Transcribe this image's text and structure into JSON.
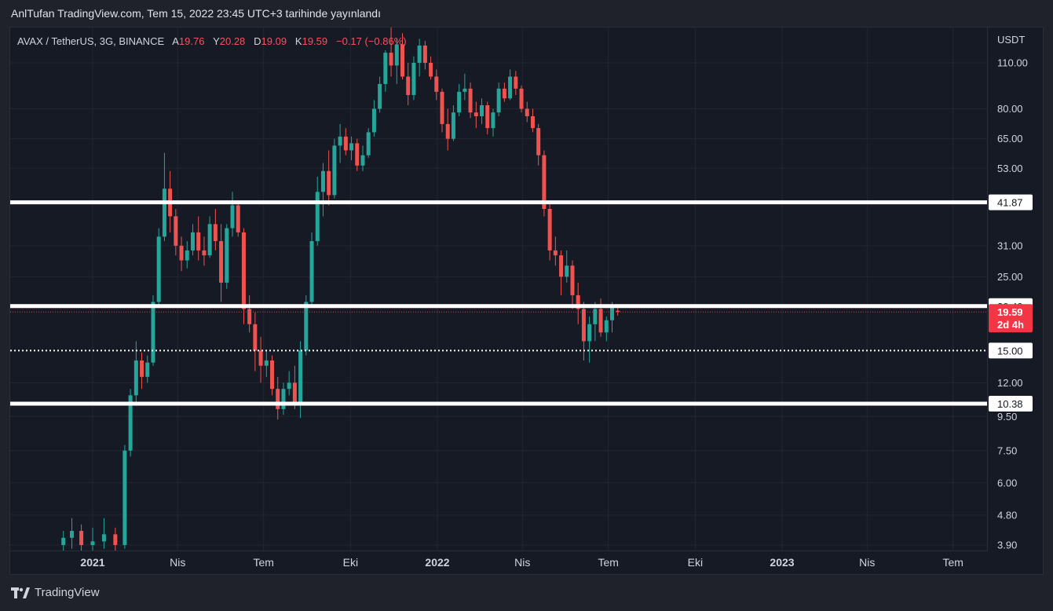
{
  "header": {
    "publish_line": "AnlTufan TradingView.com, Tem 15, 2022 23:45 UTC+3 tarihinde yayınlandı"
  },
  "legend": {
    "symbol": "AVAX / TetherUS, 3G, BINANCE",
    "open_label": "A",
    "open_value": "19.76",
    "high_label": "Y",
    "high_value": "20.28",
    "low_label": "D",
    "low_value": "19.09",
    "close_label": "K",
    "close_value": "19.59",
    "change": "−0.17 (−0.86%)"
  },
  "footer": {
    "brand": "TradingView",
    "logo_icon": "tradingview-logo-icon"
  },
  "colors": {
    "up": "#26a69a",
    "down": "#ef5350",
    "level_line": "#ffffff",
    "background": "#161a25",
    "grid": "#232632",
    "last_price": "#f23645"
  },
  "chart_data": {
    "type": "candlestick",
    "y_scale": "log",
    "ylabel": "USDT",
    "ylim": [
      3.75,
      162
    ],
    "y_ticks": [
      "110.00",
      "80.00",
      "65.00",
      "53.00",
      "31.00",
      "25.00",
      "12.00",
      "9.50",
      "7.50",
      "6.00",
      "4.80",
      "3.90"
    ],
    "x_ticks": [
      "2021",
      "Nis",
      "Tem",
      "Eki",
      "2022",
      "Nis",
      "Tem",
      "Eki",
      "2023",
      "Nis",
      "Tem"
    ],
    "horizontal_levels": [
      {
        "value": 41.87,
        "label": "41.87",
        "style": "solid"
      },
      {
        "value": 20.4,
        "label": "20.40",
        "style": "solid"
      },
      {
        "value": 15.0,
        "label": "15.00",
        "style": "dotted"
      },
      {
        "value": 10.38,
        "label": "10.38",
        "style": "solid"
      }
    ],
    "last_price": {
      "value": 19.59,
      "label": "19.59",
      "countdown": "2d 4h"
    },
    "candles": [
      {
        "date": "2020-12-01",
        "o": 3.9,
        "h": 4.3,
        "l": 3.5,
        "c": 4.1
      },
      {
        "date": "2020-12-10",
        "o": 4.1,
        "h": 4.7,
        "l": 3.8,
        "c": 4.3
      },
      {
        "date": "2020-12-20",
        "o": 4.3,
        "h": 4.5,
        "l": 3.7,
        "c": 3.9
      },
      {
        "date": "2021-01-01",
        "o": 3.9,
        "h": 4.4,
        "l": 3.6,
        "c": 4.0
      },
      {
        "date": "2021-01-13",
        "o": 4.0,
        "h": 4.7,
        "l": 3.8,
        "c": 4.2
      },
      {
        "date": "2021-01-25",
        "o": 4.2,
        "h": 4.4,
        "l": 3.6,
        "c": 3.9
      },
      {
        "date": "2021-02-04",
        "o": 3.9,
        "h": 7.8,
        "l": 3.8,
        "c": 7.5
      },
      {
        "date": "2021-02-10",
        "o": 7.5,
        "h": 11.5,
        "l": 7.2,
        "c": 11.0
      },
      {
        "date": "2021-02-16",
        "o": 11.0,
        "h": 16.0,
        "l": 10.5,
        "c": 14.0
      },
      {
        "date": "2021-02-22",
        "o": 14.0,
        "h": 14.8,
        "l": 11.5,
        "c": 12.5
      },
      {
        "date": "2021-02-28",
        "o": 12.5,
        "h": 14.5,
        "l": 12.0,
        "c": 13.8
      },
      {
        "date": "2021-03-06",
        "o": 13.8,
        "h": 22.0,
        "l": 13.5,
        "c": 21.0
      },
      {
        "date": "2021-03-12",
        "o": 21.0,
        "h": 35.0,
        "l": 20.5,
        "c": 33.0
      },
      {
        "date": "2021-03-18",
        "o": 33.0,
        "h": 59.0,
        "l": 32.0,
        "c": 46.0
      },
      {
        "date": "2021-03-24",
        "o": 46.0,
        "h": 52.0,
        "l": 34.0,
        "c": 38.0
      },
      {
        "date": "2021-03-30",
        "o": 38.0,
        "h": 40.0,
        "l": 29.0,
        "c": 31.0
      },
      {
        "date": "2021-04-05",
        "o": 31.0,
        "h": 33.0,
        "l": 26.0,
        "c": 28.0
      },
      {
        "date": "2021-04-11",
        "o": 28.0,
        "h": 32.0,
        "l": 26.5,
        "c": 30.0
      },
      {
        "date": "2021-04-17",
        "o": 30.0,
        "h": 36.0,
        "l": 29.0,
        "c": 34.0
      },
      {
        "date": "2021-04-23",
        "o": 34.0,
        "h": 38.0,
        "l": 28.0,
        "c": 30.0
      },
      {
        "date": "2021-04-29",
        "o": 30.0,
        "h": 33.0,
        "l": 27.0,
        "c": 29.0
      },
      {
        "date": "2021-05-05",
        "o": 29.0,
        "h": 38.0,
        "l": 28.5,
        "c": 36.0
      },
      {
        "date": "2021-05-11",
        "o": 36.0,
        "h": 40.0,
        "l": 30.0,
        "c": 32.0
      },
      {
        "date": "2021-05-17",
        "o": 32.0,
        "h": 36.0,
        "l": 21.0,
        "c": 24.0
      },
      {
        "date": "2021-05-23",
        "o": 24.0,
        "h": 36.0,
        "l": 23.0,
        "c": 35.0
      },
      {
        "date": "2021-05-29",
        "o": 35.0,
        "h": 45.0,
        "l": 33.0,
        "c": 41.0
      },
      {
        "date": "2021-06-04",
        "o": 41.0,
        "h": 42.0,
        "l": 33.0,
        "c": 34.0
      },
      {
        "date": "2021-06-10",
        "o": 34.0,
        "h": 35.0,
        "l": 18.0,
        "c": 20.0
      },
      {
        "date": "2021-06-16",
        "o": 20.0,
        "h": 22.0,
        "l": 17.0,
        "c": 18.0
      },
      {
        "date": "2021-06-22",
        "o": 18.0,
        "h": 19.5,
        "l": 13.0,
        "c": 15.0
      },
      {
        "date": "2021-06-28",
        "o": 15.0,
        "h": 16.5,
        "l": 12.0,
        "c": 13.5
      },
      {
        "date": "2021-07-04",
        "o": 13.5,
        "h": 15.0,
        "l": 12.5,
        "c": 14.0
      },
      {
        "date": "2021-07-10",
        "o": 14.0,
        "h": 14.5,
        "l": 11.0,
        "c": 11.5
      },
      {
        "date": "2021-07-16",
        "o": 11.5,
        "h": 12.5,
        "l": 9.3,
        "c": 10.0
      },
      {
        "date": "2021-07-22",
        "o": 10.0,
        "h": 12.0,
        "l": 9.6,
        "c": 11.5
      },
      {
        "date": "2021-07-28",
        "o": 11.5,
        "h": 13.0,
        "l": 11.0,
        "c": 12.0
      },
      {
        "date": "2021-08-03",
        "o": 12.0,
        "h": 13.5,
        "l": 10.0,
        "c": 10.5
      },
      {
        "date": "2021-08-09",
        "o": 10.5,
        "h": 16.0,
        "l": 9.4,
        "c": 15.0
      },
      {
        "date": "2021-08-15",
        "o": 15.0,
        "h": 22.0,
        "l": 14.5,
        "c": 21.0
      },
      {
        "date": "2021-08-21",
        "o": 21.0,
        "h": 34.0,
        "l": 20.5,
        "c": 32.0
      },
      {
        "date": "2021-08-27",
        "o": 32.0,
        "h": 50.0,
        "l": 31.0,
        "c": 45.0
      },
      {
        "date": "2021-09-02",
        "o": 45.0,
        "h": 55.0,
        "l": 38.0,
        "c": 52.0
      },
      {
        "date": "2021-09-08",
        "o": 52.0,
        "h": 60.0,
        "l": 41.0,
        "c": 44.0
      },
      {
        "date": "2021-09-14",
        "o": 44.0,
        "h": 65.0,
        "l": 43.0,
        "c": 62.0
      },
      {
        "date": "2021-09-20",
        "o": 62.0,
        "h": 72.0,
        "l": 55.0,
        "c": 66.0
      },
      {
        "date": "2021-09-26",
        "o": 66.0,
        "h": 70.0,
        "l": 58.0,
        "c": 60.0
      },
      {
        "date": "2021-10-02",
        "o": 60.0,
        "h": 66.0,
        "l": 56.0,
        "c": 63.0
      },
      {
        "date": "2021-10-08",
        "o": 63.0,
        "h": 65.0,
        "l": 52.0,
        "c": 54.0
      },
      {
        "date": "2021-10-14",
        "o": 54.0,
        "h": 62.0,
        "l": 52.0,
        "c": 58.0
      },
      {
        "date": "2021-10-20",
        "o": 58.0,
        "h": 70.0,
        "l": 57.0,
        "c": 68.0
      },
      {
        "date": "2021-10-26",
        "o": 68.0,
        "h": 85.0,
        "l": 66.0,
        "c": 80.0
      },
      {
        "date": "2021-11-01",
        "o": 80.0,
        "h": 100.0,
        "l": 78.0,
        "c": 95.0
      },
      {
        "date": "2021-11-07",
        "o": 95.0,
        "h": 120.0,
        "l": 90.0,
        "c": 118.0
      },
      {
        "date": "2021-11-13",
        "o": 118.0,
        "h": 146.0,
        "l": 100.0,
        "c": 108.0
      },
      {
        "date": "2021-11-19",
        "o": 108.0,
        "h": 130.0,
        "l": 95.0,
        "c": 125.0
      },
      {
        "date": "2021-11-25",
        "o": 125.0,
        "h": 135.0,
        "l": 98.0,
        "c": 100.0
      },
      {
        "date": "2021-12-01",
        "o": 100.0,
        "h": 110.0,
        "l": 82.0,
        "c": 88.0
      },
      {
        "date": "2021-12-07",
        "o": 88.0,
        "h": 115.0,
        "l": 85.0,
        "c": 110.0
      },
      {
        "date": "2021-12-13",
        "o": 110.0,
        "h": 130.0,
        "l": 100.0,
        "c": 124.0
      },
      {
        "date": "2021-12-19",
        "o": 124.0,
        "h": 128.0,
        "l": 105.0,
        "c": 110.0
      },
      {
        "date": "2021-12-25",
        "o": 110.0,
        "h": 115.0,
        "l": 98.0,
        "c": 100.0
      },
      {
        "date": "2021-12-31",
        "o": 100.0,
        "h": 105.0,
        "l": 85.0,
        "c": 90.0
      },
      {
        "date": "2022-01-06",
        "o": 90.0,
        "h": 92.0,
        "l": 68.0,
        "c": 72.0
      },
      {
        "date": "2022-01-12",
        "o": 72.0,
        "h": 80.0,
        "l": 60.0,
        "c": 65.0
      },
      {
        "date": "2022-01-18",
        "o": 65.0,
        "h": 82.0,
        "l": 64.0,
        "c": 78.0
      },
      {
        "date": "2022-01-24",
        "o": 78.0,
        "h": 95.0,
        "l": 76.0,
        "c": 90.0
      },
      {
        "date": "2022-01-30",
        "o": 90.0,
        "h": 102.0,
        "l": 85.0,
        "c": 92.0
      },
      {
        "date": "2022-02-05",
        "o": 92.0,
        "h": 96.0,
        "l": 75.0,
        "c": 78.0
      },
      {
        "date": "2022-02-11",
        "o": 78.0,
        "h": 84.0,
        "l": 70.0,
        "c": 76.0
      },
      {
        "date": "2022-02-17",
        "o": 76.0,
        "h": 86.0,
        "l": 72.0,
        "c": 82.0
      },
      {
        "date": "2022-02-23",
        "o": 82.0,
        "h": 84.0,
        "l": 67.0,
        "c": 70.0
      },
      {
        "date": "2022-03-01",
        "o": 70.0,
        "h": 80.0,
        "l": 66.0,
        "c": 78.0
      },
      {
        "date": "2022-03-07",
        "o": 78.0,
        "h": 96.0,
        "l": 76.0,
        "c": 92.0
      },
      {
        "date": "2022-03-13",
        "o": 92.0,
        "h": 96.0,
        "l": 84.0,
        "c": 86.0
      },
      {
        "date": "2022-03-19",
        "o": 86.0,
        "h": 105.0,
        "l": 85.0,
        "c": 100.0
      },
      {
        "date": "2022-03-25",
        "o": 100.0,
        "h": 104.0,
        "l": 88.0,
        "c": 92.0
      },
      {
        "date": "2022-03-31",
        "o": 92.0,
        "h": 94.0,
        "l": 78.0,
        "c": 80.0
      },
      {
        "date": "2022-04-06",
        "o": 80.0,
        "h": 84.0,
        "l": 73.0,
        "c": 76.0
      },
      {
        "date": "2022-04-12",
        "o": 76.0,
        "h": 80.0,
        "l": 68.0,
        "c": 70.0
      },
      {
        "date": "2022-04-18",
        "o": 70.0,
        "h": 72.0,
        "l": 54.0,
        "c": 58.0
      },
      {
        "date": "2022-04-24",
        "o": 58.0,
        "h": 60.0,
        "l": 38.0,
        "c": 40.0
      },
      {
        "date": "2022-04-30",
        "o": 40.0,
        "h": 42.0,
        "l": 28.0,
        "c": 30.0
      },
      {
        "date": "2022-05-06",
        "o": 30.0,
        "h": 33.0,
        "l": 27.0,
        "c": 29.0
      },
      {
        "date": "2022-05-12",
        "o": 29.0,
        "h": 30.0,
        "l": 22.0,
        "c": 25.0
      },
      {
        "date": "2022-05-18",
        "o": 25.0,
        "h": 30.0,
        "l": 24.0,
        "c": 27.0
      },
      {
        "date": "2022-05-24",
        "o": 27.0,
        "h": 28.0,
        "l": 20.0,
        "c": 22.0
      },
      {
        "date": "2022-05-30",
        "o": 22.0,
        "h": 24.0,
        "l": 18.0,
        "c": 20.0
      },
      {
        "date": "2022-06-05",
        "o": 20.0,
        "h": 21.0,
        "l": 14.0,
        "c": 16.0
      },
      {
        "date": "2022-06-11",
        "o": 16.0,
        "h": 19.0,
        "l": 13.8,
        "c": 18.0
      },
      {
        "date": "2022-06-17",
        "o": 18.0,
        "h": 21.0,
        "l": 16.0,
        "c": 20.0
      },
      {
        "date": "2022-06-23",
        "o": 20.0,
        "h": 21.5,
        "l": 16.5,
        "c": 17.0
      },
      {
        "date": "2022-06-29",
        "o": 17.0,
        "h": 19.0,
        "l": 16.0,
        "c": 18.5
      },
      {
        "date": "2022-07-05",
        "o": 18.5,
        "h": 21.0,
        "l": 17.0,
        "c": 20.2
      },
      {
        "date": "2022-07-11",
        "o": 19.76,
        "h": 20.28,
        "l": 19.09,
        "c": 19.59
      }
    ]
  }
}
